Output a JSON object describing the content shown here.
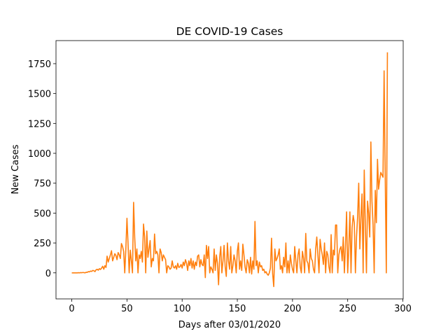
{
  "chart_data": {
    "type": "line",
    "title": "DE COVID-19 Cases",
    "x_label": "Days after 03/01/2020",
    "y_label": "New Cases",
    "color": "#ff7f0e",
    "xlim": [
      -14.3,
      300.3
    ],
    "xticks": [
      0,
      50,
      100,
      150,
      200,
      250,
      300
    ],
    "ylim": [
      -218,
      1943
    ],
    "yticks": [
      0,
      250,
      500,
      750,
      1000,
      1250,
      1500,
      1750
    ],
    "x": [
      0,
      1,
      2,
      3,
      4,
      5,
      6,
      7,
      8,
      9,
      10,
      11,
      12,
      13,
      14,
      15,
      16,
      17,
      18,
      19,
      20,
      21,
      22,
      23,
      24,
      25,
      26,
      27,
      28,
      29,
      30,
      31,
      32,
      33,
      34,
      35,
      36,
      37,
      38,
      39,
      40,
      41,
      42,
      43,
      44,
      45,
      46,
      47,
      48,
      49,
      50,
      51,
      52,
      53,
      54,
      55,
      56,
      57,
      58,
      59,
      60,
      61,
      62,
      63,
      64,
      65,
      66,
      67,
      68,
      69,
      70,
      71,
      72,
      73,
      74,
      75,
      76,
      77,
      78,
      79,
      80,
      81,
      82,
      83,
      84,
      85,
      86,
      87,
      88,
      89,
      90,
      91,
      92,
      93,
      94,
      95,
      96,
      97,
      98,
      99,
      100,
      101,
      102,
      103,
      104,
      105,
      106,
      107,
      108,
      109,
      110,
      111,
      112,
      113,
      114,
      115,
      116,
      117,
      118,
      119,
      120,
      121,
      122,
      123,
      124,
      125,
      126,
      127,
      128,
      129,
      130,
      131,
      132,
      133,
      134,
      135,
      136,
      137,
      138,
      139,
      140,
      141,
      142,
      143,
      144,
      145,
      146,
      147,
      148,
      149,
      150,
      151,
      152,
      153,
      154,
      155,
      156,
      157,
      158,
      159,
      160,
      161,
      162,
      163,
      164,
      165,
      166,
      167,
      168,
      169,
      170,
      171,
      172,
      173,
      174,
      175,
      176,
      177,
      178,
      179,
      180,
      181,
      182,
      183,
      184,
      185,
      186,
      187,
      188,
      189,
      190,
      191,
      192,
      193,
      194,
      195,
      196,
      197,
      198,
      199,
      200,
      201,
      202,
      203,
      204,
      205,
      206,
      207,
      208,
      209,
      210,
      211,
      212,
      213,
      214,
      215,
      216,
      217,
      218,
      219,
      220,
      221,
      222,
      223,
      224,
      225,
      226,
      227,
      228,
      229,
      230,
      231,
      232,
      233,
      234,
      235,
      236,
      237,
      238,
      239,
      240,
      241,
      242,
      243,
      244,
      245,
      246,
      247,
      248,
      249,
      250,
      251,
      252,
      253,
      254,
      255,
      256,
      257,
      258,
      259,
      260,
      261,
      262,
      263,
      264,
      265,
      266,
      267,
      268,
      269,
      270,
      271,
      272,
      273,
      274,
      275,
      276,
      277,
      278,
      279,
      280,
      281,
      282,
      283,
      284,
      285,
      286
    ],
    "values": [
      0,
      0,
      0,
      0,
      0,
      0,
      1,
      0,
      2,
      1,
      3,
      2,
      0,
      5,
      4,
      10,
      8,
      15,
      12,
      20,
      18,
      10,
      25,
      30,
      22,
      35,
      28,
      40,
      55,
      30,
      60,
      45,
      140,
      90,
      120,
      150,
      185,
      100,
      130,
      160,
      145,
      110,
      170,
      150,
      120,
      245,
      220,
      180,
      0,
      200,
      457,
      240,
      0,
      190,
      100,
      0,
      590,
      300,
      100,
      200,
      0,
      150,
      120,
      180,
      90,
      408,
      300,
      0,
      350,
      130,
      200,
      270,
      50,
      120,
      100,
      325,
      160,
      180,
      150,
      0,
      200,
      170,
      100,
      150,
      130,
      110,
      0,
      60,
      50,
      30,
      40,
      100,
      50,
      40,
      60,
      30,
      80,
      45,
      50,
      70,
      40,
      90,
      60,
      110,
      80,
      20,
      100,
      60,
      120,
      40,
      100,
      30,
      90,
      60,
      140,
      150,
      50,
      110,
      70,
      60,
      150,
      -40,
      230,
      120,
      220,
      0,
      50,
      30,
      0,
      200,
      20,
      150,
      80,
      -100,
      130,
      220,
      0,
      100,
      230,
      50,
      -30,
      250,
      100,
      30,
      220,
      0,
      60,
      150,
      100,
      0,
      180,
      250,
      30,
      100,
      20,
      240,
      150,
      50,
      0,
      110,
      80,
      0,
      130,
      -10,
      100,
      30,
      430,
      60,
      100,
      0,
      90,
      50,
      60,
      20,
      30,
      0,
      10,
      -10,
      -20,
      0,
      40,
      290,
      -5,
      -115,
      200,
      100,
      120,
      150,
      200,
      30,
      60,
      0,
      130,
      50,
      250,
      0,
      100,
      0,
      150,
      80,
      30,
      0,
      220,
      100,
      0,
      150,
      200,
      50,
      0,
      180,
      120,
      0,
      330,
      100,
      80,
      0,
      200,
      120,
      100,
      30,
      0,
      200,
      300,
      150,
      0,
      280,
      200,
      150,
      70,
      250,
      0,
      180,
      150,
      50,
      0,
      320,
      0,
      190,
      150,
      400,
      400,
      0,
      150,
      200,
      220,
      100,
      300,
      0,
      230,
      510,
      0,
      200,
      510,
      0,
      380,
      480,
      420,
      0,
      300,
      470,
      750,
      200,
      460,
      660,
      0,
      860,
      400,
      0,
      600,
      500,
      300,
      1095,
      600,
      400,
      0,
      690,
      420,
      950,
      700,
      780,
      840,
      820,
      800,
      1690,
      820,
      0,
      1845
    ]
  }
}
